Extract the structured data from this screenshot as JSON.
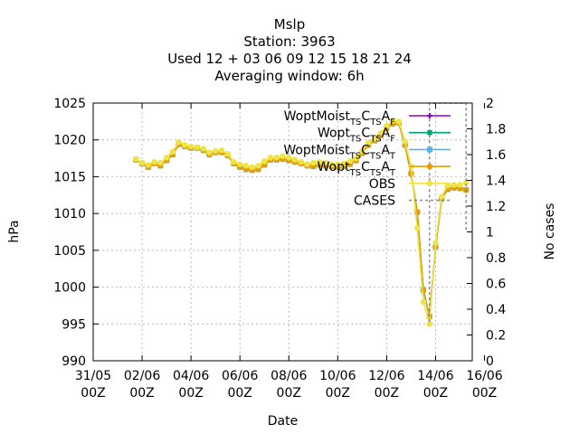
{
  "chart_data": {
    "type": "line",
    "title": [
      "Mslp",
      "Station:      3963",
      "Used  12 + 03 06 09 12 15 18 21 24",
      "Averaging window:  6h"
    ],
    "xlabel": "Date",
    "ylabel": "hPa",
    "y2label": "No cases",
    "xlim": [
      0,
      15.5
    ],
    "ylim": [
      990,
      1025
    ],
    "y2lim": [
      0,
      2
    ],
    "grid": true,
    "x_ticks": [
      {
        "x": 0,
        "label": [
          "31/05",
          "00Z"
        ]
      },
      {
        "x": 2,
        "label": [
          "02/06",
          "00Z"
        ]
      },
      {
        "x": 4,
        "label": [
          "04/06",
          "00Z"
        ]
      },
      {
        "x": 6,
        "label": [
          "06/06",
          "00Z"
        ]
      },
      {
        "x": 8,
        "label": [
          "08/06",
          "00Z"
        ]
      },
      {
        "x": 10,
        "label": [
          "10/06",
          "00Z"
        ]
      },
      {
        "x": 12,
        "label": [
          "12/06",
          "00Z"
        ]
      },
      {
        "x": 14,
        "label": [
          "14/06",
          "00Z"
        ]
      },
      {
        "x": 16,
        "label": [
          "16/06",
          "00Z"
        ]
      }
    ],
    "y_ticks": [
      "990",
      "995",
      "1000",
      "1005",
      "1010",
      "1015",
      "1020",
      "1025"
    ],
    "y2_ticks": [
      "0",
      "0.2",
      "0.4",
      "0.6",
      "0.8",
      "1",
      "1.2",
      "1.4",
      "1.6",
      "1.8",
      "2"
    ],
    "legend_position": "top-right",
    "x": [
      1.75,
      2.0,
      2.25,
      2.5,
      2.75,
      3.0,
      3.25,
      3.5,
      3.75,
      4.0,
      4.25,
      4.5,
      4.75,
      5.0,
      5.25,
      5.5,
      5.75,
      6.0,
      6.25,
      6.5,
      6.75,
      7.0,
      7.25,
      7.5,
      7.75,
      8.0,
      8.25,
      8.5,
      8.75,
      9.0,
      9.25,
      9.5,
      9.75,
      10.0,
      10.25,
      10.5,
      10.75,
      11.0,
      11.25,
      11.5,
      11.75,
      12.0,
      12.25,
      12.5,
      12.75,
      13.0,
      13.25,
      13.5,
      13.75,
      14.0,
      14.25,
      14.5,
      14.75,
      15.0,
      15.25
    ],
    "series": [
      {
        "name": "WoptMoist_TSC_TSA_F",
        "legend_main": [
          "WoptMoist",
          "C",
          "A"
        ],
        "legend_sub": [
          "TS",
          "TS",
          "F"
        ],
        "color": "#9400d3",
        "marker": "plus",
        "values": [
          1017.3,
          1016.8,
          1016.3,
          1016.8,
          1016.5,
          1017.2,
          1018.0,
          1019.4,
          1019.1,
          1018.9,
          1018.9,
          1018.6,
          1018.0,
          1018.3,
          1018.3,
          1017.9,
          1016.8,
          1016.3,
          1016.0,
          1015.9,
          1016.0,
          1016.6,
          1017.3,
          1017.3,
          1017.4,
          1017.2,
          1017.0,
          1016.8,
          1016.5,
          1016.4,
          1016.6,
          1016.5,
          1016.4,
          1016.3,
          1016.4,
          1016.7,
          1017.2,
          1018.2,
          1019.3,
          1019.9,
          1020.6,
          1021.6,
          1022.2,
          1022.3,
          1019.3,
          1015.4,
          1010.2,
          999.6,
          996.0,
          1005.5,
          1012.0,
          1013.3,
          1013.5,
          1013.4,
          1013.2
        ]
      },
      {
        "name": "Wopt_TSC_TSA_F",
        "legend_main": [
          "Wopt",
          "C",
          "A"
        ],
        "legend_sub": [
          "TS",
          "TS",
          "F"
        ],
        "color": "#009e73",
        "marker": "star",
        "values": [
          1017.3,
          1016.8,
          1016.3,
          1016.8,
          1016.5,
          1017.2,
          1018.0,
          1019.4,
          1019.1,
          1018.9,
          1018.9,
          1018.6,
          1018.0,
          1018.3,
          1018.3,
          1017.9,
          1016.8,
          1016.3,
          1016.0,
          1015.9,
          1016.0,
          1016.6,
          1017.3,
          1017.3,
          1017.4,
          1017.2,
          1017.0,
          1016.8,
          1016.5,
          1016.4,
          1016.6,
          1016.5,
          1016.4,
          1016.3,
          1016.4,
          1016.7,
          1017.2,
          1018.2,
          1019.3,
          1019.9,
          1020.6,
          1021.6,
          1022.2,
          1022.3,
          1019.3,
          1015.4,
          1010.2,
          999.6,
          996.0,
          1005.5,
          1012.0,
          1013.3,
          1013.5,
          1013.4,
          1013.2
        ]
      },
      {
        "name": "WoptMoist_TSC_TSA_T",
        "legend_main": [
          "WoptMoist",
          "C",
          "A"
        ],
        "legend_sub": [
          "TS",
          "TS",
          "T"
        ],
        "color": "#56b4e9",
        "marker": "square",
        "values": [
          1017.3,
          1016.8,
          1016.3,
          1016.8,
          1016.5,
          1017.2,
          1018.0,
          1019.4,
          1019.1,
          1018.9,
          1018.9,
          1018.6,
          1018.0,
          1018.3,
          1018.3,
          1017.9,
          1016.8,
          1016.3,
          1016.0,
          1015.9,
          1016.0,
          1016.6,
          1017.3,
          1017.3,
          1017.4,
          1017.2,
          1017.0,
          1016.8,
          1016.5,
          1016.4,
          1016.6,
          1016.5,
          1016.4,
          1016.3,
          1016.4,
          1016.7,
          1017.2,
          1018.2,
          1019.3,
          1019.9,
          1020.6,
          1021.6,
          1022.2,
          1022.3,
          1019.3,
          1015.4,
          1010.2,
          999.6,
          996.0,
          1005.5,
          1012.0,
          1013.3,
          1013.5,
          1013.4,
          1013.2
        ]
      },
      {
        "name": "Wopt_TSC_TSA_T",
        "legend_main": [
          "Wopt",
          "C",
          "A"
        ],
        "legend_sub": [
          "TS",
          "TS",
          "T"
        ],
        "color": "#e69f00",
        "marker": "circle",
        "values": [
          1017.3,
          1016.8,
          1016.3,
          1016.8,
          1016.5,
          1017.2,
          1018.0,
          1019.4,
          1019.1,
          1018.9,
          1018.9,
          1018.6,
          1018.0,
          1018.3,
          1018.3,
          1017.9,
          1016.8,
          1016.3,
          1016.0,
          1015.9,
          1016.0,
          1016.6,
          1017.3,
          1017.3,
          1017.4,
          1017.2,
          1017.0,
          1016.8,
          1016.5,
          1016.4,
          1016.6,
          1016.5,
          1016.4,
          1016.3,
          1016.4,
          1016.7,
          1017.2,
          1018.2,
          1019.3,
          1019.9,
          1020.6,
          1021.6,
          1022.2,
          1022.3,
          1019.3,
          1015.4,
          1010.2,
          999.6,
          996.0,
          1005.5,
          1012.0,
          1013.3,
          1013.5,
          1013.4,
          1013.2
        ]
      },
      {
        "name": "OBS",
        "legend_main": [
          "OBS"
        ],
        "legend_sub": [],
        "color": "#f0e442",
        "marker": "circle",
        "values": [
          1017.4,
          1016.9,
          1016.6,
          1017.0,
          1016.9,
          1017.6,
          1018.4,
          1019.7,
          1019.3,
          1019.1,
          1019.0,
          1018.8,
          1018.3,
          1018.5,
          1018.6,
          1018.1,
          1017.0,
          1016.7,
          1016.5,
          1016.3,
          1016.5,
          1017.1,
          1017.6,
          1017.6,
          1017.8,
          1017.6,
          1017.3,
          1017.0,
          1016.7,
          1016.9,
          1017.0,
          1016.9,
          1016.7,
          1016.7,
          1016.8,
          1017.1,
          1017.5,
          1018.5,
          1019.6,
          1020.2,
          1020.9,
          1021.9,
          1022.6,
          1022.5,
          1019.8,
          1016.4,
          1008.0,
          998.0,
          995.0,
          1006.0,
          1012.3,
          1013.8,
          1013.9,
          1013.9,
          1014.2
        ]
      },
      {
        "name": "CASES",
        "legend_main": [
          "CASES"
        ],
        "legend_sub": [],
        "color": "#888888",
        "dashed": true,
        "x": [
          13.75,
          13.75,
          15.25,
          15.25
        ],
        "values": [
          0.3,
          2.0,
          2.0,
          1.0
        ]
      }
    ]
  }
}
